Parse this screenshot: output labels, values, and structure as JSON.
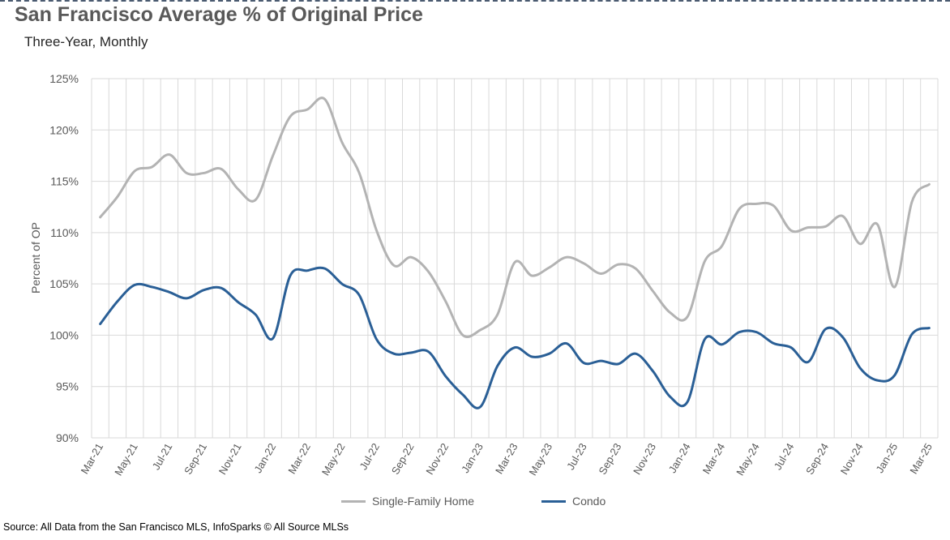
{
  "colors": {
    "sfh": "#b3b3b3",
    "condo": "#2a5f96",
    "grid": "#d9d9d9",
    "text": "#595959"
  },
  "header": {
    "title": "San Francisco Average % of Original Price",
    "subtitle": "Three-Year, Monthly"
  },
  "footer": {
    "source": "Source: All Data from the San Francisco MLS, InfoSparks © All Source MLSs"
  },
  "chart_data": {
    "type": "line",
    "title": "San Francisco Average % of Original Price",
    "subtitle": "Three-Year, Monthly",
    "xlabel": "",
    "ylabel": "Percent of OP",
    "ylim": [
      90,
      125
    ],
    "y_ticks": [
      "90%",
      "95%",
      "100%",
      "105%",
      "110%",
      "115%",
      "120%",
      "125%"
    ],
    "grid": true,
    "legend_position": "bottom",
    "x": [
      "Mar-21",
      "Apr-21",
      "May-21",
      "Jun-21",
      "Jul-21",
      "Aug-21",
      "Sep-21",
      "Oct-21",
      "Nov-21",
      "Dec-21",
      "Jan-22",
      "Feb-22",
      "Mar-22",
      "Apr-22",
      "May-22",
      "Jun-22",
      "Jul-22",
      "Aug-22",
      "Sep-22",
      "Oct-22",
      "Nov-22",
      "Dec-22",
      "Jan-23",
      "Feb-23",
      "Mar-23",
      "Apr-23",
      "May-23",
      "Jun-23",
      "Jul-23",
      "Aug-23",
      "Sep-23",
      "Oct-23",
      "Nov-23",
      "Dec-23",
      "Jan-24",
      "Feb-24",
      "Mar-24",
      "Apr-24",
      "May-24",
      "Jun-24",
      "Jul-24",
      "Aug-24",
      "Sep-24",
      "Oct-24",
      "Nov-24",
      "Dec-24",
      "Jan-25",
      "Feb-25",
      "Mar-25"
    ],
    "x_tick_labels": [
      "Mar-21",
      "May-21",
      "Jul-21",
      "Sep-21",
      "Nov-21",
      "Jan-22",
      "Mar-22",
      "May-22",
      "Jul-22",
      "Sep-22",
      "Nov-22",
      "Jan-23",
      "Mar-23",
      "May-23",
      "Jul-23",
      "Sep-23",
      "Nov-23",
      "Jan-24",
      "Mar-24",
      "May-24",
      "Jul-24",
      "Sep-24",
      "Nov-24",
      "Jan-25",
      "Mar-25"
    ],
    "series": [
      {
        "name": "Single-Family Home",
        "values": [
          111.5,
          113.5,
          116.0,
          116.4,
          117.6,
          115.8,
          115.8,
          116.2,
          114.2,
          113.2,
          117.5,
          121.3,
          122.0,
          123.0,
          118.8,
          115.8,
          110.2,
          106.8,
          107.6,
          106.2,
          103.3,
          100.0,
          100.5,
          102.0,
          107.1,
          105.8,
          106.6,
          107.6,
          107.0,
          106.0,
          106.9,
          106.5,
          104.3,
          102.2,
          101.8,
          107.2,
          108.7,
          112.3,
          112.8,
          112.6,
          110.2,
          110.5,
          110.6,
          111.6,
          108.9,
          110.8,
          104.7,
          113.0,
          114.7
        ]
      },
      {
        "name": "Condo",
        "values": [
          101.1,
          103.3,
          104.9,
          104.7,
          104.2,
          103.6,
          104.4,
          104.6,
          103.2,
          102.0,
          99.7,
          105.8,
          106.3,
          106.5,
          105.0,
          103.9,
          99.6,
          98.2,
          98.3,
          98.4,
          96.0,
          94.2,
          93.0,
          97.0,
          98.8,
          97.9,
          98.2,
          99.2,
          97.3,
          97.5,
          97.2,
          98.2,
          96.5,
          94.0,
          93.5,
          99.6,
          99.1,
          100.3,
          100.3,
          99.2,
          98.8,
          97.4,
          100.6,
          99.8,
          96.8,
          95.6,
          96.1,
          100.1,
          100.7
        ]
      }
    ]
  }
}
